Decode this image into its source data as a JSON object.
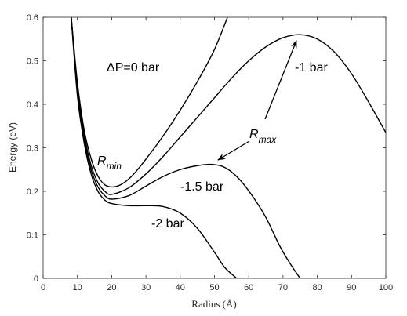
{
  "chart_data": {
    "type": "line",
    "title": "",
    "xlabel": "Radius (Å)",
    "ylabel": "Energy (eV)",
    "xlim": [
      0,
      100
    ],
    "ylim": [
      0,
      0.6
    ],
    "xticks": [
      0,
      10,
      20,
      30,
      40,
      50,
      60,
      70,
      80,
      90,
      100
    ],
    "yticks": [
      0,
      0.1,
      0.2,
      0.3,
      0.4,
      0.5,
      0.6
    ],
    "grid": false,
    "line_color": "#000000",
    "series": [
      {
        "name": "ΔP=0 bar",
        "x": [
          8.2,
          10,
          12,
          14,
          16,
          18,
          20,
          22,
          24,
          26,
          28,
          30,
          34,
          38,
          42,
          46,
          50,
          53.8
        ],
        "y": [
          0.6,
          0.45,
          0.34,
          0.275,
          0.235,
          0.215,
          0.21,
          0.213,
          0.222,
          0.236,
          0.254,
          0.274,
          0.316,
          0.362,
          0.412,
          0.466,
          0.526,
          0.6
        ]
      },
      {
        "name": "-1 bar",
        "x": [
          8.2,
          10,
          12,
          14,
          16,
          18,
          20,
          25,
          30,
          35,
          40,
          45,
          50,
          55,
          60,
          65,
          70,
          75,
          80,
          85,
          90,
          95,
          100
        ],
        "y": [
          0.6,
          0.44,
          0.33,
          0.26,
          0.22,
          0.2,
          0.193,
          0.208,
          0.24,
          0.28,
          0.325,
          0.37,
          0.415,
          0.46,
          0.5,
          0.532,
          0.553,
          0.56,
          0.55,
          0.52,
          0.47,
          0.405,
          0.335
        ]
      },
      {
        "name": "-1.5 bar",
        "x": [
          8.2,
          10,
          12,
          14,
          16,
          18,
          20,
          25,
          30,
          35,
          40,
          45,
          49,
          53,
          57,
          61,
          65,
          69,
          72,
          75
        ],
        "y": [
          0.6,
          0.43,
          0.32,
          0.25,
          0.21,
          0.19,
          0.182,
          0.19,
          0.212,
          0.234,
          0.25,
          0.259,
          0.262,
          0.255,
          0.23,
          0.19,
          0.14,
          0.075,
          0.035,
          0.0
        ]
      },
      {
        "name": "-2 bar",
        "x": [
          8.2,
          10,
          12,
          14,
          16,
          18,
          20,
          25,
          30,
          35,
          40,
          45,
          50,
          53,
          56.5
        ],
        "y": [
          0.6,
          0.42,
          0.31,
          0.24,
          0.2,
          0.18,
          0.172,
          0.167,
          0.167,
          0.165,
          0.15,
          0.115,
          0.06,
          0.025,
          0.0
        ]
      }
    ],
    "annotations": {
      "p0": "ΔP=0 bar",
      "p1": "-1 bar",
      "p15": "-1.5 bar",
      "p2": "-2 bar",
      "rmin_main": "R",
      "rmin_sub": "min",
      "rmax_main": "R",
      "rmax_sub": "max"
    }
  }
}
